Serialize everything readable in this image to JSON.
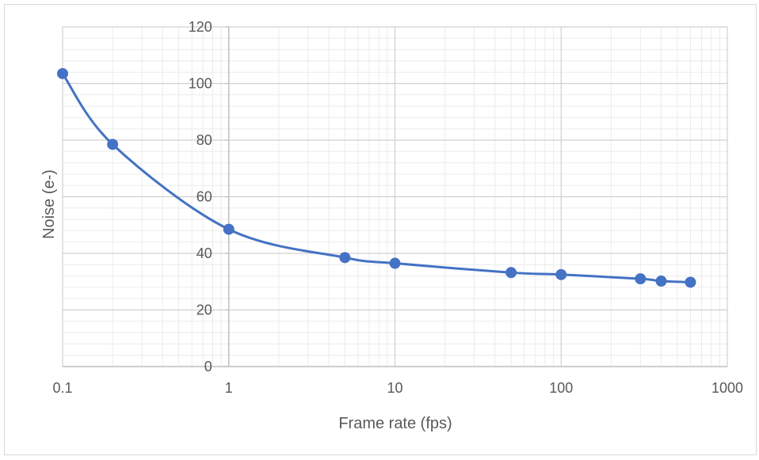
{
  "chart_data": {
    "type": "scatter",
    "title": "",
    "xlabel": "Frame rate (fps)",
    "ylabel": "Noise (e-)",
    "x_scale": "log",
    "xlim": [
      0.1,
      1000
    ],
    "ylim": [
      0,
      120
    ],
    "x_ticks": [
      "0.1",
      "1",
      "10",
      "100",
      "1000"
    ],
    "y_ticks": [
      "0",
      "20",
      "40",
      "60",
      "80",
      "100",
      "120"
    ],
    "grid": true,
    "minor_grid": true,
    "legend": "none",
    "series": [
      {
        "color": "#4472c4",
        "line": "smooth",
        "markers": true,
        "points": [
          {
            "x": 0.1,
            "y": 103.5
          },
          {
            "x": 0.2,
            "y": 78.5
          },
          {
            "x": 1,
            "y": 48.5
          },
          {
            "x": 5,
            "y": 38.5
          },
          {
            "x": 10,
            "y": 36.5
          },
          {
            "x": 50,
            "y": 33.2
          },
          {
            "x": 100,
            "y": 32.5
          },
          {
            "x": 300,
            "y": 31
          },
          {
            "x": 400,
            "y": 30.2
          },
          {
            "x": 600,
            "y": 29.8
          }
        ]
      }
    ]
  },
  "style": {
    "series_color": "#4472c4",
    "major_grid_color": "#d0d0d0",
    "minor_grid_color": "#ebebeb",
    "axis_color": "#bfbfbf",
    "text_color": "#595959"
  }
}
